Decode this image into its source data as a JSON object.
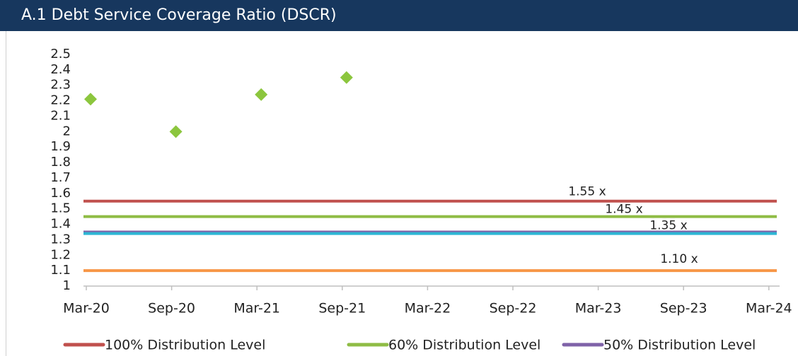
{
  "chart_data": {
    "type": "scatter",
    "title": "A.1 Debt Service Coverage Ratio (DSCR)",
    "categories": [
      "Mar-20",
      "Sep-20",
      "Mar-21",
      "Sep-21",
      "Mar-22",
      "Sep-22",
      "Mar-23",
      "Sep-23",
      "Mar-24"
    ],
    "points": {
      "color": "#8cc63e",
      "values": [
        2.21,
        2.0,
        2.24,
        2.35
      ]
    },
    "reference_lines": [
      {
        "name": "100% Distribution Level",
        "color": "#c0504d",
        "value": 1.55,
        "value_label": "1.55 x"
      },
      {
        "name": "60% Distribution Level",
        "color": "#8fbc45",
        "value": 1.45,
        "value_label": "1.45 x"
      },
      {
        "name": "50% Distribution Level",
        "color": "#7f62a8",
        "value": 1.35,
        "value_label": "1.35 x"
      },
      {
        "color": "#2db6d4",
        "value": 1.34
      },
      {
        "color": "#f79646",
        "value": 1.1,
        "value_label": "1.10 x"
      }
    ],
    "ylim": [
      1,
      2.5
    ],
    "yticks": [
      1,
      1.1,
      1.2,
      1.3,
      1.4,
      1.5,
      1.6,
      1.7,
      1.8,
      1.9,
      2,
      2.1,
      2.2,
      2.3,
      2.4,
      2.5
    ]
  }
}
